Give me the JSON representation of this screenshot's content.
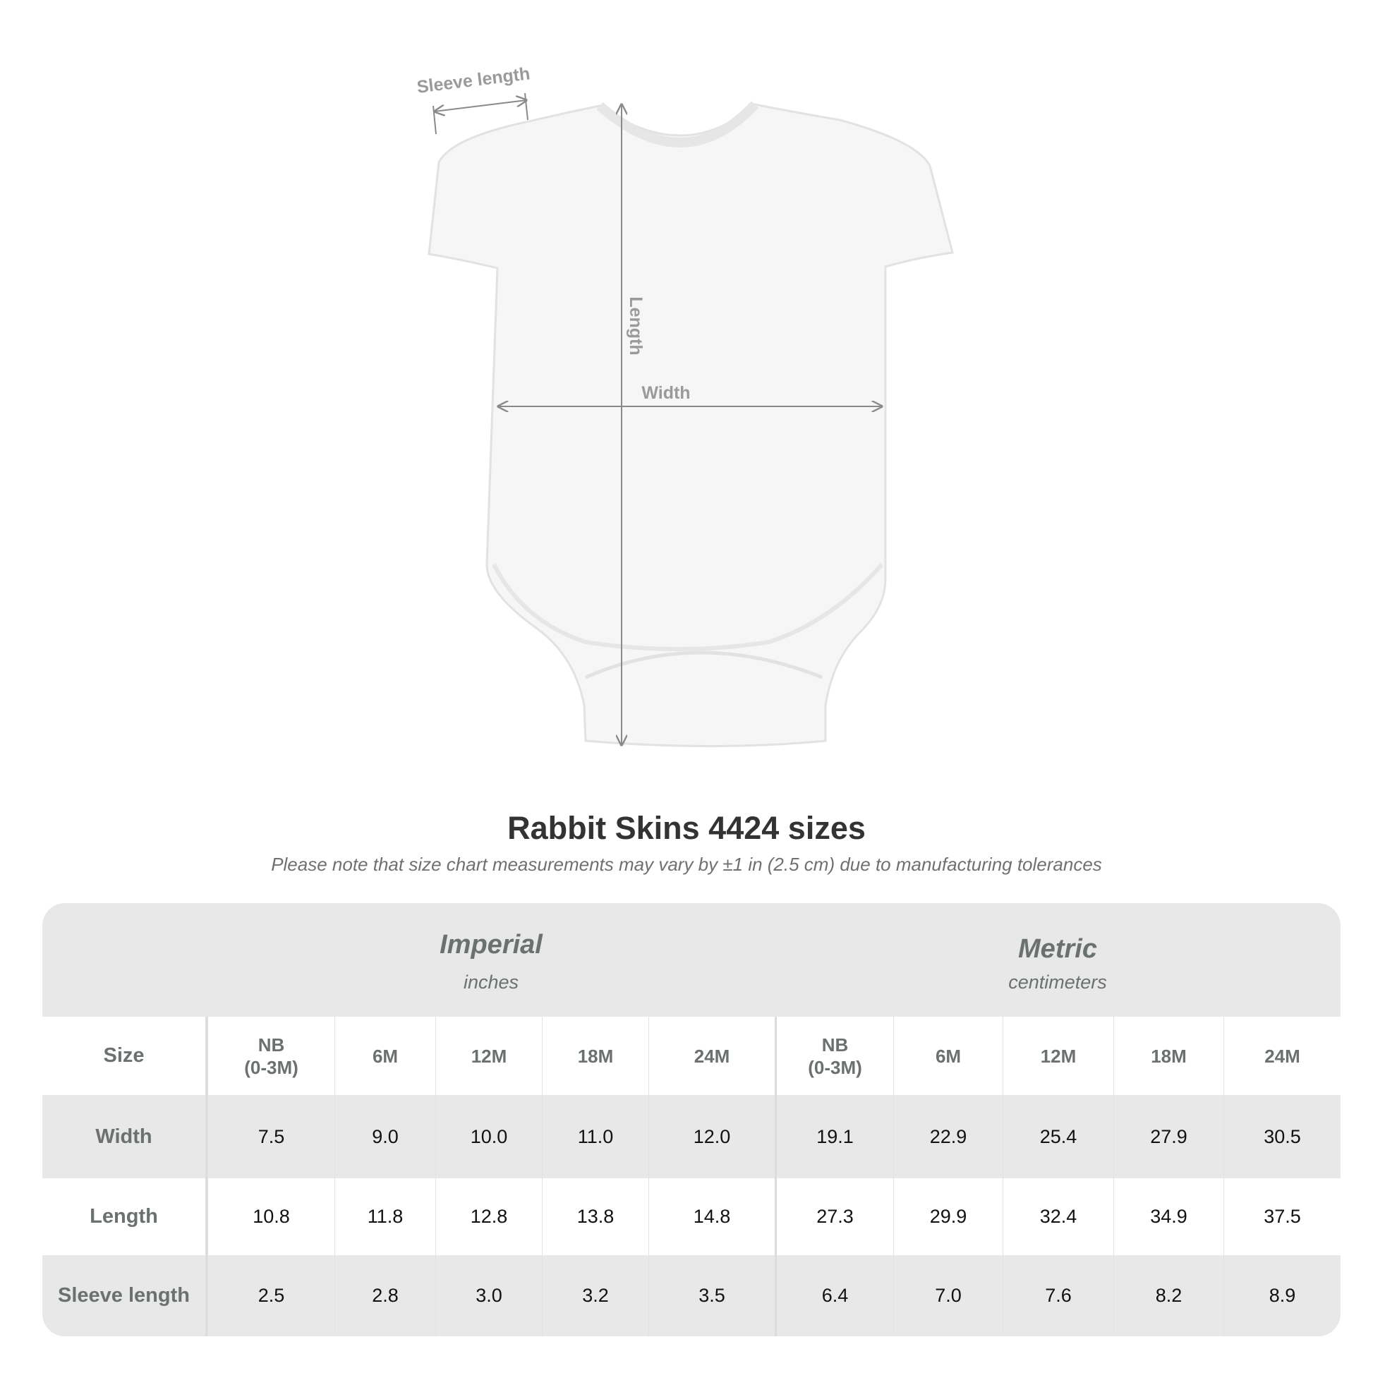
{
  "diagram": {
    "labels": {
      "sleeve_length": "Sleeve length",
      "length": "Length",
      "width": "Width"
    }
  },
  "title": "Rabbit Skins 4424 sizes",
  "subtitle": "Please note that size chart measurements may vary by ±1 in (2.5 cm) due to manufacturing tolerances",
  "table": {
    "imperial": {
      "name": "Imperial",
      "unit": "inches"
    },
    "metric": {
      "name": "Metric",
      "unit": "centimeters"
    },
    "size_label": "Size",
    "sizes": [
      "NB\n(0-3M)",
      "6M",
      "12M",
      "18M",
      "24M"
    ],
    "rows": [
      {
        "label": "Width",
        "imperial": [
          "7.5",
          "9.0",
          "10.0",
          "11.0",
          "12.0"
        ],
        "metric": [
          "19.1",
          "22.9",
          "25.4",
          "27.9",
          "30.5"
        ]
      },
      {
        "label": "Length",
        "imperial": [
          "10.8",
          "11.8",
          "12.8",
          "13.8",
          "14.8"
        ],
        "metric": [
          "27.3",
          "29.9",
          "32.4",
          "34.9",
          "37.5"
        ]
      },
      {
        "label": "Sleeve length",
        "imperial": [
          "2.5",
          "2.8",
          "3.0",
          "3.2",
          "3.5"
        ],
        "metric": [
          "6.4",
          "7.0",
          "7.6",
          "8.2",
          "8.9"
        ]
      }
    ]
  }
}
